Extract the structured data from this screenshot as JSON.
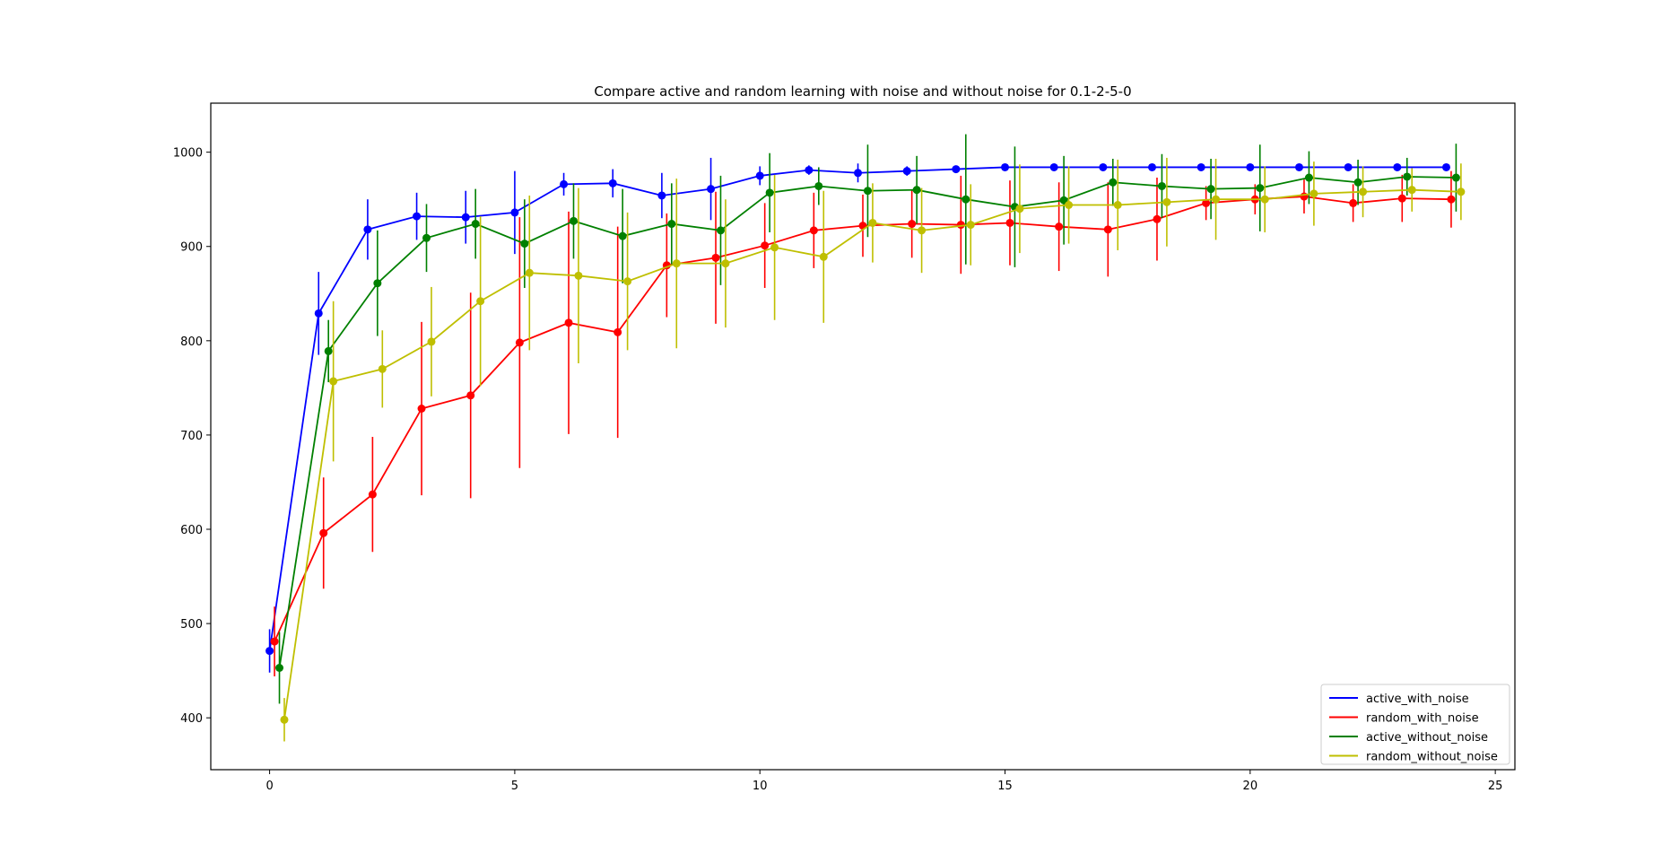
{
  "chart_data": {
    "type": "line",
    "title": "Compare active and random learning with noise and without noise for 0.1-2-5-0",
    "xlabel": "",
    "ylabel": "",
    "xlim": [
      -1.2,
      25.4
    ],
    "ylim": [
      345,
      1052
    ],
    "xticks": [
      0,
      5,
      10,
      15,
      20,
      25
    ],
    "yticks": [
      400,
      500,
      600,
      700,
      800,
      900,
      1000
    ],
    "grid": false,
    "legend_position": "lower-right",
    "series": [
      {
        "name": "active_with_noise",
        "color": "#0000ff",
        "x": [
          0,
          1,
          2,
          3,
          4,
          5,
          6,
          7,
          8,
          9,
          10,
          11,
          12,
          13,
          14,
          15,
          16,
          17,
          18,
          19,
          20,
          21,
          22,
          23,
          24
        ],
        "y": [
          471,
          829,
          918,
          932,
          931,
          936,
          966,
          967,
          954,
          961,
          975,
          981,
          978,
          980,
          982,
          984,
          984,
          984,
          984,
          984,
          984,
          984,
          984,
          984,
          984
        ],
        "err": [
          23,
          44,
          32,
          25,
          28,
          44,
          12,
          15,
          24,
          33,
          10,
          5,
          10,
          5,
          3,
          2,
          2,
          2,
          2,
          2,
          2,
          2,
          2,
          2,
          2
        ]
      },
      {
        "name": "random_with_noise",
        "color": "#ff0000",
        "x": [
          0.1,
          1.1,
          2.1,
          3.1,
          4.1,
          5.1,
          6.1,
          7.1,
          8.1,
          9.1,
          10.1,
          11.1,
          12.1,
          13.1,
          14.1,
          15.1,
          16.1,
          17.1,
          18.1,
          19.1,
          20.1,
          21.1,
          22.1,
          23.1,
          24.1
        ],
        "y": [
          481,
          596,
          637,
          728,
          742,
          798,
          819,
          809,
          880,
          888,
          901,
          917,
          922,
          924,
          923,
          925,
          921,
          918,
          929,
          946,
          950,
          953,
          946,
          951,
          950
        ],
        "err": [
          37,
          59,
          61,
          92,
          109,
          133,
          118,
          112,
          55,
          70,
          45,
          40,
          33,
          36,
          52,
          45,
          47,
          50,
          44,
          18,
          16,
          18,
          20,
          25,
          30
        ]
      },
      {
        "name": "active_without_noise",
        "color": "#008000",
        "x": [
          0.2,
          1.2,
          2.2,
          3.2,
          4.2,
          5.2,
          6.2,
          7.2,
          8.2,
          9.2,
          10.2,
          11.2,
          12.2,
          13.2,
          14.2,
          15.2,
          16.2,
          17.2,
          18.2,
          19.2,
          20.2,
          21.2,
          22.2,
          23.2,
          24.2
        ],
        "y": [
          453,
          789,
          861,
          909,
          924,
          903,
          927,
          911,
          924,
          917,
          957,
          964,
          959,
          960,
          950,
          942,
          949,
          968,
          964,
          961,
          962,
          973,
          968,
          974,
          973
        ],
        "err": [
          38,
          33,
          56,
          36,
          37,
          47,
          40,
          50,
          43,
          58,
          42,
          20,
          49,
          36,
          69,
          64,
          47,
          25,
          34,
          32,
          46,
          28,
          24,
          20,
          36
        ]
      },
      {
        "name": "random_without_noise",
        "color": "#bfbf00",
        "x": [
          0.3,
          1.3,
          2.3,
          3.3,
          4.3,
          5.3,
          6.3,
          7.3,
          8.3,
          9.3,
          10.3,
          11.3,
          12.3,
          13.3,
          14.3,
          15.3,
          16.3,
          17.3,
          18.3,
          19.3,
          20.3,
          21.3,
          22.3,
          23.3,
          24.3
        ],
        "y": [
          398,
          757,
          770,
          799,
          842,
          872,
          869,
          863,
          882,
          882,
          899,
          889,
          925,
          917,
          923,
          940,
          944,
          944,
          947,
          950,
          950,
          956,
          958,
          960,
          958
        ],
        "err": [
          23,
          85,
          41,
          58,
          90,
          82,
          93,
          73,
          90,
          68,
          77,
          70,
          42,
          45,
          43,
          47,
          41,
          48,
          47,
          43,
          35,
          34,
          27,
          23,
          30
        ]
      }
    ]
  }
}
